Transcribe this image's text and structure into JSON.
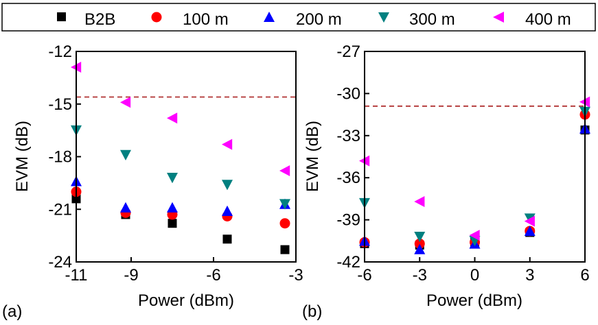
{
  "legend": {
    "entries": [
      {
        "label": "B2B",
        "marker": "square",
        "color": "#000000"
      },
      {
        "label": "100 m",
        "marker": "circle",
        "color": "#ff0000"
      },
      {
        "label": "200 m",
        "marker": "triangle-up",
        "color": "#0000ff"
      },
      {
        "label": "300 m",
        "marker": "triangle-down",
        "color": "#008080"
      },
      {
        "label": "400 m",
        "marker": "triangle-left",
        "color": "#ff00ff"
      }
    ]
  },
  "panels": [
    {
      "tag": "(a)"
    },
    {
      "tag": "(b)"
    }
  ],
  "chart_data": [
    {
      "type": "scatter",
      "panel_label": "(a)",
      "xlabel": "Power (dBm)",
      "ylabel": "EVM (dB)",
      "xlim": [
        -11,
        -3
      ],
      "ylim": [
        -24,
        -12
      ],
      "xticks": [
        -11,
        -9,
        -6,
        -3
      ],
      "xtick_labels": [
        "-11",
        "-9",
        "-6",
        "-3"
      ],
      "yticks": [
        -24,
        -21,
        -18,
        -15,
        -12
      ],
      "ytick_labels": [
        "-24",
        "-21",
        "-18",
        "-15",
        "-12"
      ],
      "reference_line": {
        "y": -14.6,
        "style": "dashed",
        "color": "#b03030"
      },
      "grid": false,
      "series": [
        {
          "name": "B2B",
          "x": [
            -11,
            -9.2,
            -7.5,
            -5.5,
            -3.4
          ],
          "y": [
            -20.4,
            -21.3,
            -21.8,
            -22.7,
            -23.3
          ]
        },
        {
          "name": "100 m",
          "x": [
            -11,
            -9.2,
            -7.5,
            -5.5,
            -3.4
          ],
          "y": [
            -20.0,
            -21.2,
            -21.3,
            -21.4,
            -21.8
          ]
        },
        {
          "name": "200 m",
          "x": [
            -11,
            -9.2,
            -7.5,
            -5.5,
            -3.4
          ],
          "y": [
            -19.4,
            -20.9,
            -20.9,
            -21.1,
            -20.7
          ]
        },
        {
          "name": "300 m",
          "x": [
            -11,
            -9.2,
            -7.5,
            -5.5,
            -3.4
          ],
          "y": [
            -16.5,
            -17.9,
            -19.2,
            -19.6,
            -20.7
          ]
        },
        {
          "name": "400 m",
          "x": [
            -11,
            -9.2,
            -7.5,
            -5.5,
            -3.4
          ],
          "y": [
            -12.9,
            -14.9,
            -15.8,
            -17.3,
            -18.8
          ]
        }
      ]
    },
    {
      "type": "scatter",
      "panel_label": "(b)",
      "xlabel": "Power (dBm)",
      "ylabel": "EVM (dB)",
      "xlim": [
        -6,
        6
      ],
      "ylim": [
        -42,
        -27
      ],
      "xticks": [
        -6,
        -3,
        0,
        3,
        6
      ],
      "xtick_labels": [
        "-6",
        "-3",
        "0",
        "3",
        "6"
      ],
      "yticks": [
        -42,
        -39,
        -36,
        -33,
        -30,
        -27
      ],
      "ytick_labels": [
        "-42",
        "-39",
        "-36",
        "-33",
        "-30",
        "-27"
      ],
      "reference_line": {
        "y": -30.9,
        "style": "dashed",
        "color": "#b03030"
      },
      "grid": false,
      "series": [
        {
          "name": "B2B",
          "x": [
            -6,
            -3,
            0,
            3,
            6
          ],
          "y": [
            -40.7,
            -40.8,
            -40.6,
            -39.9,
            -32.6
          ]
        },
        {
          "name": "100 m",
          "x": [
            -6,
            -3,
            0,
            3,
            6
          ],
          "y": [
            -40.6,
            -40.7,
            -40.6,
            -39.8,
            -31.5
          ]
        },
        {
          "name": "200 m",
          "x": [
            -6,
            -3,
            0,
            3,
            6
          ],
          "y": [
            -40.5,
            -41.1,
            -40.7,
            -39.8,
            -32.5
          ]
        },
        {
          "name": "300 m",
          "x": [
            -6,
            -3,
            0,
            3,
            6
          ],
          "y": [
            -37.8,
            -40.2,
            -40.5,
            -38.9,
            -31.3
          ]
        },
        {
          "name": "400 m",
          "x": [
            -6,
            -3,
            0,
            3,
            6
          ],
          "y": [
            -34.8,
            -37.7,
            -40.1,
            -39.1,
            -30.6
          ]
        }
      ]
    }
  ]
}
